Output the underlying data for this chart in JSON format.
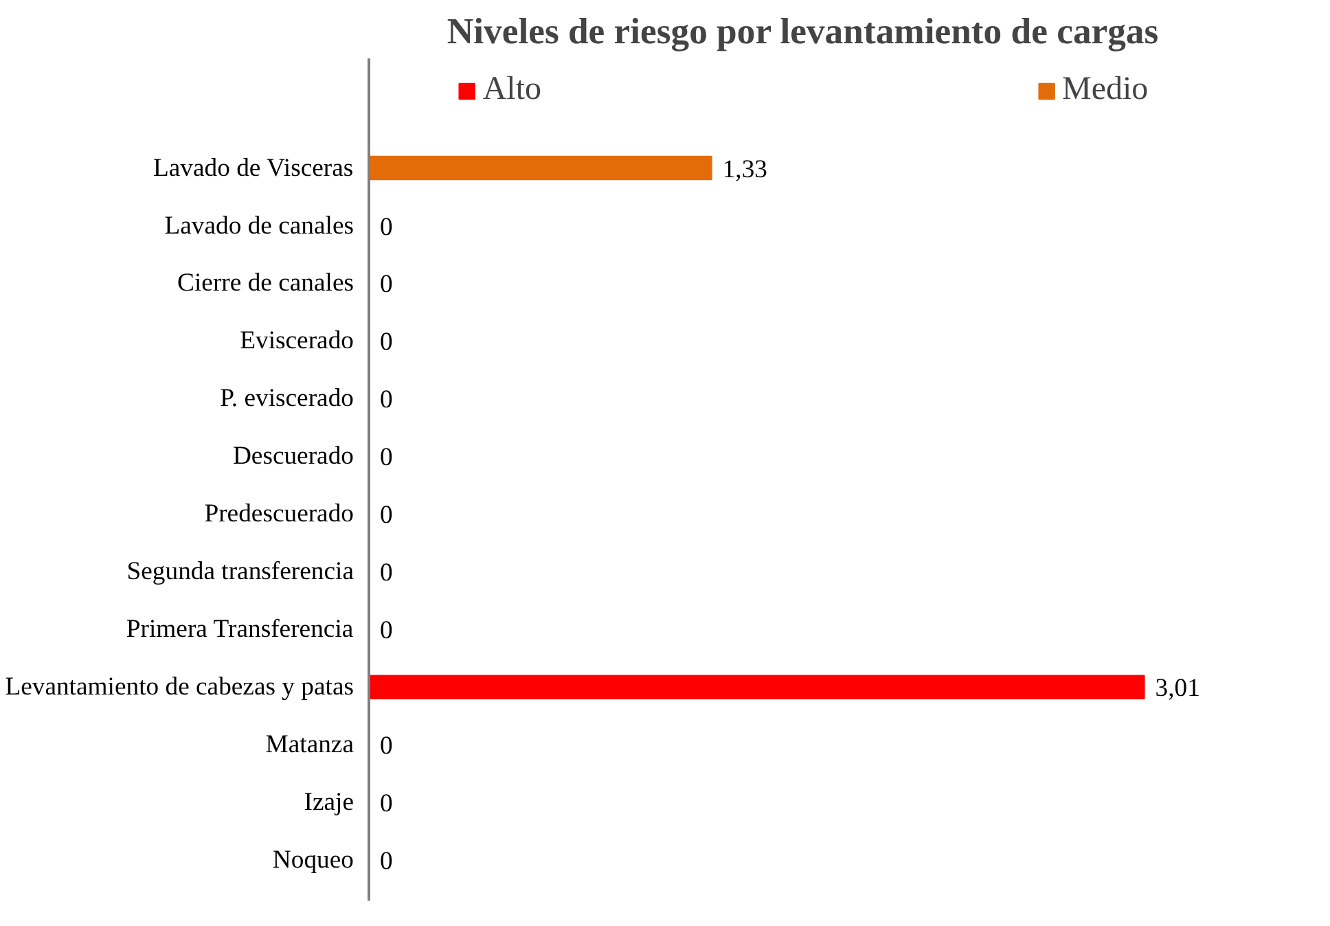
{
  "chart_data": {
    "type": "bar",
    "orientation": "horizontal",
    "title": "Niveles de riesgo por levantamiento de cargas",
    "categories": [
      "Lavado de Visceras",
      "Lavado de canales",
      "Cierre de canales",
      "Eviscerado",
      "P. eviscerado",
      "Descuerado",
      "Predescuerado",
      "Segunda transferencia",
      "Primera Transferencia",
      "Levantamiento de cabezas y patas",
      "Matanza",
      "Izaje",
      "Noqueo"
    ],
    "series": [
      {
        "name": "Alto",
        "color": "#ff0000",
        "values": [
          null,
          0,
          0,
          0,
          0,
          0,
          0,
          0,
          0,
          3.01,
          0,
          0,
          0
        ],
        "value_labels": [
          null,
          "0",
          "0",
          "0",
          "0",
          "0",
          "0",
          "0",
          "0",
          "3,01",
          "0",
          "0",
          "0"
        ]
      },
      {
        "name": "Medio",
        "color": "#e36c09",
        "values": [
          1.33,
          null,
          null,
          null,
          null,
          null,
          null,
          null,
          null,
          null,
          null,
          null,
          null
        ],
        "value_labels": [
          "1,33",
          null,
          null,
          null,
          null,
          null,
          null,
          null,
          null,
          null,
          null,
          null,
          null
        ]
      }
    ],
    "legend": "top"
  }
}
